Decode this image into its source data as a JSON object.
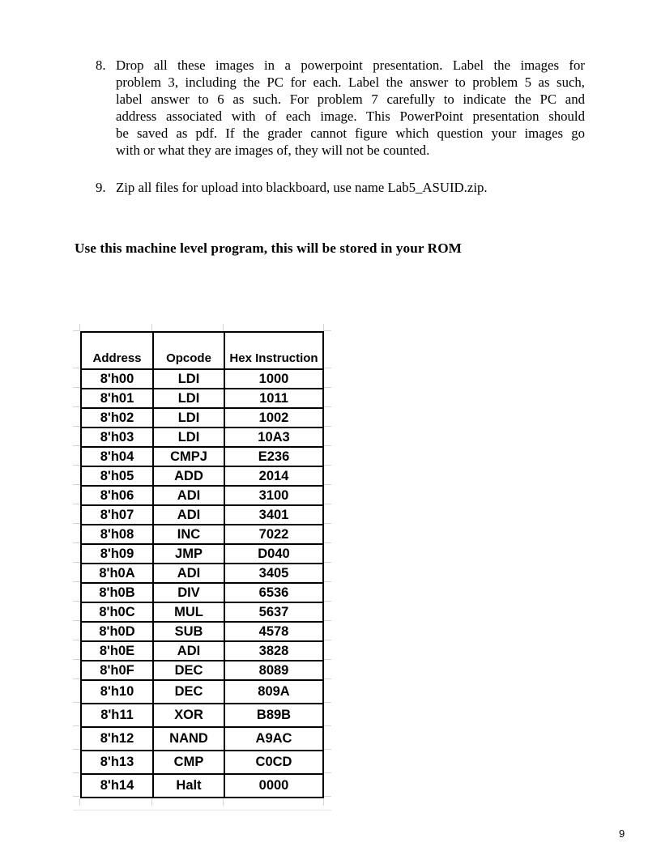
{
  "document": {
    "list_items": [
      {
        "marker": "8.",
        "lines": [
          "Drop all these images in a powerpoint presentation. Label the images for",
          "problem 3, including the PC for each. Label the answer to problem 5 as such,",
          "label answer to 6 as such. For problem 7 carefully to indicate the PC and",
          "address associated with of each image. This PowerPoint presentation should",
          "be saved as pdf. If the grader cannot figure which question your images go",
          "with or what they are images of, they will not be counted."
        ]
      },
      {
        "marker": "9.",
        "lines": [
          "Zip all files for upload into blackboard, use name Lab5_ASUID.zip."
        ]
      }
    ],
    "heading": "Use this machine level program, this will be stored in your ROM",
    "page_number": "9"
  },
  "rom_table": {
    "headers": [
      "Address",
      "Opcode",
      "Hex Instruction"
    ],
    "rows": [
      [
        "8'h00",
        "LDI",
        "1000"
      ],
      [
        "8'h01",
        "LDI",
        "1011"
      ],
      [
        "8'h02",
        "LDI",
        "1002"
      ],
      [
        "8'h03",
        "LDI",
        "10A3"
      ],
      [
        "8'h04",
        "CMPJ",
        "E236"
      ],
      [
        "8'h05",
        "ADD",
        "2014"
      ],
      [
        "8'h06",
        "ADI",
        "3100"
      ],
      [
        "8'h07",
        "ADI",
        "3401"
      ],
      [
        "8'h08",
        "INC",
        "7022"
      ],
      [
        "8'h09",
        "JMP",
        "D040"
      ],
      [
        "8'h0A",
        "ADI",
        "3405"
      ],
      [
        "8'h0B",
        "DIV",
        "6536"
      ],
      [
        "8'h0C",
        "MUL",
        "5637"
      ],
      [
        "8'h0D",
        "SUB",
        "4578"
      ],
      [
        "8'h0E",
        "ADI",
        "3828"
      ],
      [
        "8'h0F",
        "DEC",
        "8089"
      ],
      [
        "8'h10",
        "DEC",
        "809A"
      ],
      [
        "8'h11",
        "XOR",
        "B89B"
      ],
      [
        "8'h12",
        "NAND",
        "A9AC"
      ],
      [
        "8'h13",
        "CMP",
        "C0CD"
      ],
      [
        "8'h14",
        "Halt",
        "0000"
      ]
    ]
  }
}
